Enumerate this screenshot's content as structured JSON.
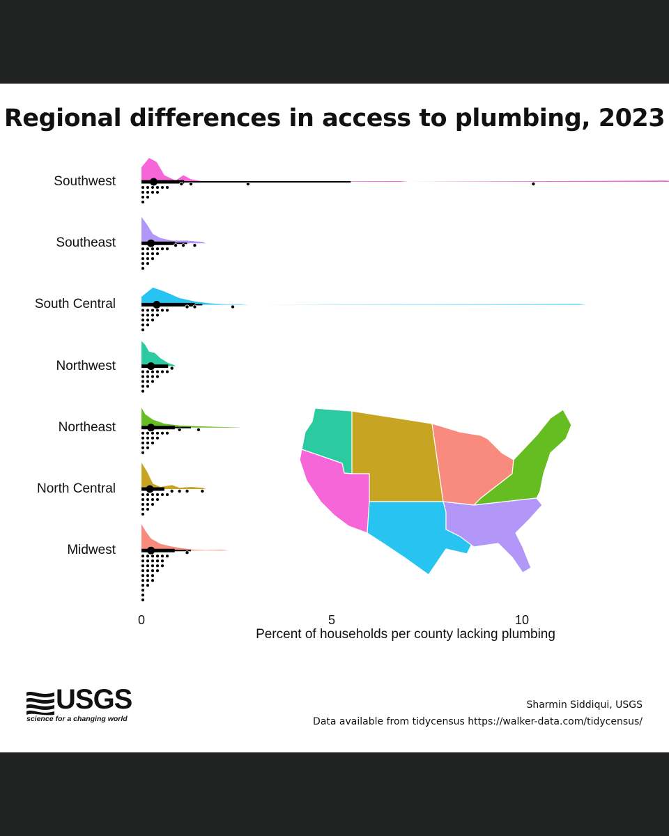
{
  "title": "Regional differences in access to plumbing, 2023",
  "credit": {
    "author": "Sharmin Siddiqui, USGS",
    "source": "Data available from tidycensus https://walker-data.com/tidycensus/"
  },
  "logo": {
    "word": "USGS",
    "tagline": "science for a changing world"
  },
  "chart_data": [
    {
      "type": "raincloud",
      "title": "Regional differences in access to plumbing, 2023",
      "xlabel": "Percent of households per county lacking plumbing",
      "ylabel": "",
      "xlim": [
        0,
        14
      ],
      "xticks": [
        0,
        5,
        10
      ],
      "grid": false,
      "legend": "none",
      "series": [
        {
          "name": "Southwest",
          "color": "#f766d8",
          "mean": 0.32,
          "interval": [
            0.0,
            5.5
          ],
          "outliers": [
            1.05,
            1.3,
            2.8,
            10.3
          ],
          "density": [
            [
              0,
              0.55
            ],
            [
              0.2,
              0.9
            ],
            [
              0.4,
              0.75
            ],
            [
              0.6,
              0.25
            ],
            [
              0.9,
              0.05
            ],
            [
              1.1,
              0.25
            ],
            [
              1.3,
              0.1
            ],
            [
              1.6,
              0.02
            ],
            [
              2.2,
              0.02
            ],
            [
              3,
              0
            ],
            [
              6.8,
              0.03
            ],
            [
              7,
              0
            ],
            [
              13.8,
              0.05
            ],
            [
              14,
              0
            ]
          ]
        },
        {
          "name": "Southeast",
          "color": "#b297f8",
          "mean": 0.25,
          "interval": [
            0.0,
            1.2
          ],
          "outliers": [
            0.9,
            1.1,
            1.4
          ],
          "density": [
            [
              0,
              1.0
            ],
            [
              0.15,
              0.7
            ],
            [
              0.3,
              0.35
            ],
            [
              0.5,
              0.2
            ],
            [
              0.8,
              0.1
            ],
            [
              1.2,
              0.1
            ],
            [
              1.6,
              0.05
            ],
            [
              1.7,
              0
            ]
          ]
        },
        {
          "name": "South Central",
          "color": "#27c3f1",
          "mean": 0.4,
          "interval": [
            0.0,
            1.6
          ],
          "outliers": [
            1.2,
            1.4,
            2.4
          ],
          "density": [
            [
              0,
              0.3
            ],
            [
              0.3,
              0.65
            ],
            [
              0.6,
              0.5
            ],
            [
              1.0,
              0.25
            ],
            [
              1.4,
              0.12
            ],
            [
              1.8,
              0.05
            ],
            [
              2.2,
              0.02
            ],
            [
              2.6,
              0.02
            ],
            [
              2.8,
              0
            ],
            [
              11.5,
              0.03
            ],
            [
              11.7,
              0
            ]
          ]
        },
        {
          "name": "Northwest",
          "color": "#2bcaa0",
          "mean": 0.25,
          "interval": [
            0.0,
            0.7
          ],
          "outliers": [
            0.8
          ],
          "density": [
            [
              0,
              0.95
            ],
            [
              0.1,
              0.8
            ],
            [
              0.2,
              0.55
            ],
            [
              0.35,
              0.5
            ],
            [
              0.5,
              0.3
            ],
            [
              0.7,
              0.12
            ],
            [
              0.85,
              0.05
            ],
            [
              0.9,
              0
            ]
          ]
        },
        {
          "name": "Northeast",
          "color": "#66bd22",
          "mean": 0.25,
          "interval": [
            0.0,
            1.3
          ],
          "outliers": [
            1.0,
            1.5
          ],
          "density": [
            [
              0,
              0.75
            ],
            [
              0.1,
              0.5
            ],
            [
              0.3,
              0.3
            ],
            [
              0.6,
              0.15
            ],
            [
              1.0,
              0.08
            ],
            [
              1.5,
              0.05
            ],
            [
              2.0,
              0.03
            ],
            [
              2.5,
              0.01
            ],
            [
              2.6,
              0
            ]
          ]
        },
        {
          "name": "North Central",
          "color": "#c8a423",
          "mean": 0.22,
          "interval": [
            0.0,
            0.6
          ],
          "outliers": [
            0.8,
            1.0,
            1.2,
            1.6
          ],
          "density": [
            [
              0,
              1.0
            ],
            [
              0.15,
              0.65
            ],
            [
              0.3,
              0.2
            ],
            [
              0.5,
              0.08
            ],
            [
              0.8,
              0.15
            ],
            [
              1.0,
              0.05
            ],
            [
              1.3,
              0.08
            ],
            [
              1.6,
              0.05
            ],
            [
              1.7,
              0
            ]
          ]
        },
        {
          "name": "Midwest",
          "color": "#f88a7e",
          "mean": 0.25,
          "interval": [
            0.0,
            1.3
          ],
          "outliers": [
            1.2
          ],
          "density": [
            [
              0,
              1.0
            ],
            [
              0.1,
              0.75
            ],
            [
              0.25,
              0.45
            ],
            [
              0.5,
              0.25
            ],
            [
              0.8,
              0.15
            ],
            [
              1.1,
              0.08
            ],
            [
              1.4,
              0.03
            ],
            [
              1.7,
              0.01
            ],
            [
              2.1,
              0.03
            ],
            [
              2.3,
              0
            ]
          ]
        }
      ]
    },
    {
      "type": "map",
      "regions": [
        {
          "name": "Northwest",
          "color": "#2bcaa0"
        },
        {
          "name": "North Central",
          "color": "#c8a423"
        },
        {
          "name": "Midwest",
          "color": "#f88a7e"
        },
        {
          "name": "Northeast",
          "color": "#66bd22"
        },
        {
          "name": "Southwest",
          "color": "#f766d8"
        },
        {
          "name": "South Central",
          "color": "#27c3f1"
        },
        {
          "name": "Southeast",
          "color": "#b297f8"
        }
      ]
    }
  ]
}
